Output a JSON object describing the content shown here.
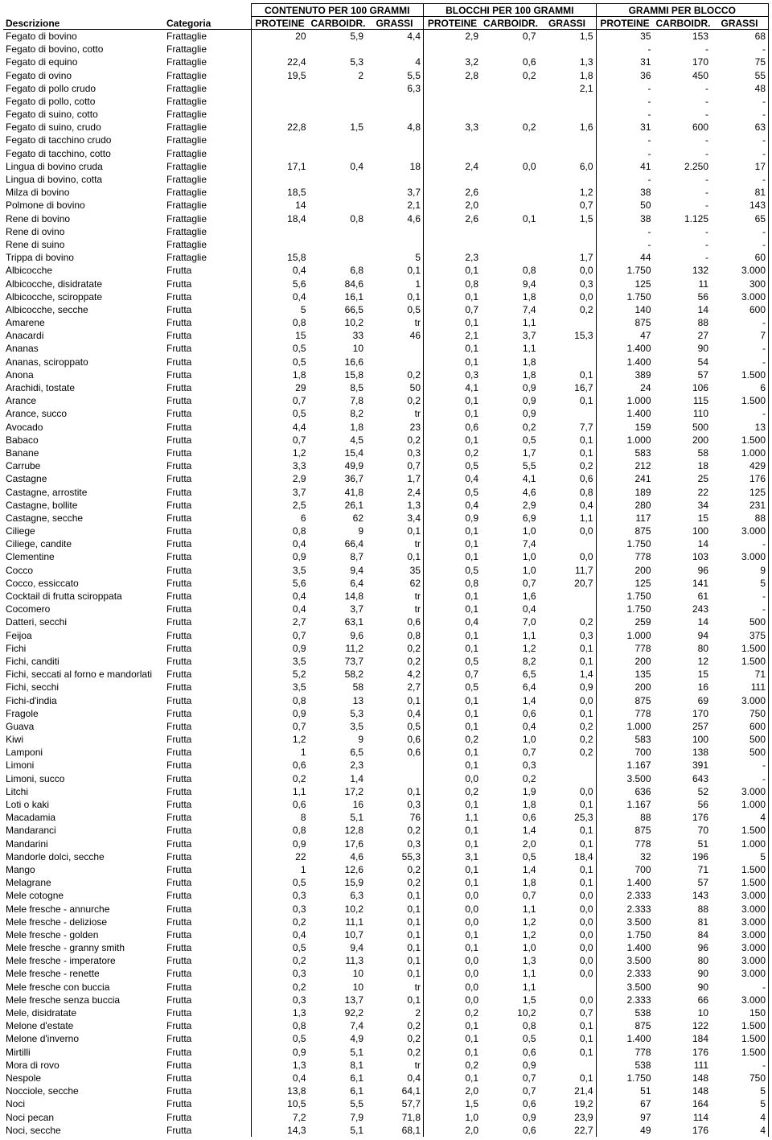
{
  "groupHeaders": [
    "CONTENUTO PER 100 GRAMMI",
    "BLOCCHI PER 100 GRAMMI",
    "GRAMMI PER BLOCCO"
  ],
  "columns": [
    "Descrizione",
    "Categoria",
    "PROTEINE",
    "CARBOIDR.",
    "GRASSI",
    "PROTEINE",
    "CARBOIDR.",
    "GRASSI",
    "PROTEINE",
    "CARBOIDR.",
    "GRASSI"
  ],
  "rows": [
    [
      "Fegato di bovino",
      "Frattaglie",
      "20",
      "5,9",
      "4,4",
      "2,9",
      "0,7",
      "1,5",
      "35",
      "153",
      "68"
    ],
    [
      "Fegato di bovino, cotto",
      "Frattaglie",
      "",
      "",
      "",
      "",
      "",
      "",
      "-",
      "-",
      "-"
    ],
    [
      "Fegato di equino",
      "Frattaglie",
      "22,4",
      "5,3",
      "4",
      "3,2",
      "0,6",
      "1,3",
      "31",
      "170",
      "75"
    ],
    [
      "Fegato di ovino",
      "Frattaglie",
      "19,5",
      "2",
      "5,5",
      "2,8",
      "0,2",
      "1,8",
      "36",
      "450",
      "55"
    ],
    [
      "Fegato di pollo crudo",
      "Frattaglie",
      "",
      "",
      "6,3",
      "",
      "",
      "2,1",
      "-",
      "-",
      "48"
    ],
    [
      "Fegato di pollo, cotto",
      "Frattaglie",
      "",
      "",
      "",
      "",
      "",
      "",
      "-",
      "-",
      "-"
    ],
    [
      "Fegato di suino, cotto",
      "Frattaglie",
      "",
      "",
      "",
      "",
      "",
      "",
      "-",
      "-",
      "-"
    ],
    [
      "Fegato di suino, crudo",
      "Frattaglie",
      "22,8",
      "1,5",
      "4,8",
      "3,3",
      "0,2",
      "1,6",
      "31",
      "600",
      "63"
    ],
    [
      "Fegato di tacchino crudo",
      "Frattaglie",
      "",
      "",
      "",
      "",
      "",
      "",
      "-",
      "-",
      "-"
    ],
    [
      "Fegato di tacchino, cotto",
      "Frattaglie",
      "",
      "",
      "",
      "",
      "",
      "",
      "-",
      "-",
      "-"
    ],
    [
      "Lingua di bovino cruda",
      "Frattaglie",
      "17,1",
      "0,4",
      "18",
      "2,4",
      "0,0",
      "6,0",
      "41",
      "2.250",
      "17"
    ],
    [
      "Lingua di bovino, cotta",
      "Frattaglie",
      "",
      "",
      "",
      "",
      "",
      "",
      "-",
      "-",
      "-"
    ],
    [
      "Milza di bovino",
      "Frattaglie",
      "18,5",
      "",
      "3,7",
      "2,6",
      "",
      "1,2",
      "38",
      "-",
      "81"
    ],
    [
      "Polmone di bovino",
      "Frattaglie",
      "14",
      "",
      "2,1",
      "2,0",
      "",
      "0,7",
      "50",
      "-",
      "143"
    ],
    [
      "Rene di bovino",
      "Frattaglie",
      "18,4",
      "0,8",
      "4,6",
      "2,6",
      "0,1",
      "1,5",
      "38",
      "1.125",
      "65"
    ],
    [
      "Rene di ovino",
      "Frattaglie",
      "",
      "",
      "",
      "",
      "",
      "",
      "-",
      "-",
      "-"
    ],
    [
      "Rene di suino",
      "Frattaglie",
      "",
      "",
      "",
      "",
      "",
      "",
      "-",
      "-",
      "-"
    ],
    [
      "Trippa di bovino",
      "Frattaglie",
      "15,8",
      "",
      "5",
      "2,3",
      "",
      "1,7",
      "44",
      "-",
      "60"
    ],
    [
      "Albicocche",
      "Frutta",
      "0,4",
      "6,8",
      "0,1",
      "0,1",
      "0,8",
      "0,0",
      "1.750",
      "132",
      "3.000"
    ],
    [
      "Albicocche, disidratate",
      "Frutta",
      "5,6",
      "84,6",
      "1",
      "0,8",
      "9,4",
      "0,3",
      "125",
      "11",
      "300"
    ],
    [
      "Albicocche, sciroppate",
      "Frutta",
      "0,4",
      "16,1",
      "0,1",
      "0,1",
      "1,8",
      "0,0",
      "1.750",
      "56",
      "3.000"
    ],
    [
      "Albicocche, secche",
      "Frutta",
      "5",
      "66,5",
      "0,5",
      "0,7",
      "7,4",
      "0,2",
      "140",
      "14",
      "600"
    ],
    [
      "Amarene",
      "Frutta",
      "0,8",
      "10,2",
      "tr",
      "0,1",
      "1,1",
      "",
      "875",
      "88",
      "-"
    ],
    [
      "Anacardi",
      "Frutta",
      "15",
      "33",
      "46",
      "2,1",
      "3,7",
      "15,3",
      "47",
      "27",
      "7"
    ],
    [
      "Ananas",
      "Frutta",
      "0,5",
      "10",
      "",
      "0,1",
      "1,1",
      "",
      "1.400",
      "90",
      "-"
    ],
    [
      "Ananas, sciroppato",
      "Frutta",
      "0,5",
      "16,6",
      "",
      "0,1",
      "1,8",
      "",
      "1.400",
      "54",
      "-"
    ],
    [
      "Anona",
      "Frutta",
      "1,8",
      "15,8",
      "0,2",
      "0,3",
      "1,8",
      "0,1",
      "389",
      "57",
      "1.500"
    ],
    [
      "Arachidi, tostate",
      "Frutta",
      "29",
      "8,5",
      "50",
      "4,1",
      "0,9",
      "16,7",
      "24",
      "106",
      "6"
    ],
    [
      "Arance",
      "Frutta",
      "0,7",
      "7,8",
      "0,2",
      "0,1",
      "0,9",
      "0,1",
      "1.000",
      "115",
      "1.500"
    ],
    [
      "Arance, succo",
      "Frutta",
      "0,5",
      "8,2",
      "tr",
      "0,1",
      "0,9",
      "",
      "1.400",
      "110",
      "-"
    ],
    [
      "Avocado",
      "Frutta",
      "4,4",
      "1,8",
      "23",
      "0,6",
      "0,2",
      "7,7",
      "159",
      "500",
      "13"
    ],
    [
      "Babaco",
      "Frutta",
      "0,7",
      "4,5",
      "0,2",
      "0,1",
      "0,5",
      "0,1",
      "1.000",
      "200",
      "1.500"
    ],
    [
      "Banane",
      "Frutta",
      "1,2",
      "15,4",
      "0,3",
      "0,2",
      "1,7",
      "0,1",
      "583",
      "58",
      "1.000"
    ],
    [
      "Carrube",
      "Frutta",
      "3,3",
      "49,9",
      "0,7",
      "0,5",
      "5,5",
      "0,2",
      "212",
      "18",
      "429"
    ],
    [
      "Castagne",
      "Frutta",
      "2,9",
      "36,7",
      "1,7",
      "0,4",
      "4,1",
      "0,6",
      "241",
      "25",
      "176"
    ],
    [
      "Castagne, arrostite",
      "Frutta",
      "3,7",
      "41,8",
      "2,4",
      "0,5",
      "4,6",
      "0,8",
      "189",
      "22",
      "125"
    ],
    [
      "Castagne, bollite",
      "Frutta",
      "2,5",
      "26,1",
      "1,3",
      "0,4",
      "2,9",
      "0,4",
      "280",
      "34",
      "231"
    ],
    [
      "Castagne, secche",
      "Frutta",
      "6",
      "62",
      "3,4",
      "0,9",
      "6,9",
      "1,1",
      "117",
      "15",
      "88"
    ],
    [
      "Ciliege",
      "Frutta",
      "0,8",
      "9",
      "0,1",
      "0,1",
      "1,0",
      "0,0",
      "875",
      "100",
      "3.000"
    ],
    [
      "Ciliege, candite",
      "Frutta",
      "0,4",
      "66,4",
      "tr",
      "0,1",
      "7,4",
      "",
      "1.750",
      "14",
      "-"
    ],
    [
      "Clementine",
      "Frutta",
      "0,9",
      "8,7",
      "0,1",
      "0,1",
      "1,0",
      "0,0",
      "778",
      "103",
      "3.000"
    ],
    [
      "Cocco",
      "Frutta",
      "3,5",
      "9,4",
      "35",
      "0,5",
      "1,0",
      "11,7",
      "200",
      "96",
      "9"
    ],
    [
      "Cocco, essiccato",
      "Frutta",
      "5,6",
      "6,4",
      "62",
      "0,8",
      "0,7",
      "20,7",
      "125",
      "141",
      "5"
    ],
    [
      "Cocktail di frutta sciroppata",
      "Frutta",
      "0,4",
      "14,8",
      "tr",
      "0,1",
      "1,6",
      "",
      "1.750",
      "61",
      "-"
    ],
    [
      "Cocomero",
      "Frutta",
      "0,4",
      "3,7",
      "tr",
      "0,1",
      "0,4",
      "",
      "1.750",
      "243",
      "-"
    ],
    [
      "Datteri, secchi",
      "Frutta",
      "2,7",
      "63,1",
      "0,6",
      "0,4",
      "7,0",
      "0,2",
      "259",
      "14",
      "500"
    ],
    [
      "Feijoa",
      "Frutta",
      "0,7",
      "9,6",
      "0,8",
      "0,1",
      "1,1",
      "0,3",
      "1.000",
      "94",
      "375"
    ],
    [
      "Fichi",
      "Frutta",
      "0,9",
      "11,2",
      "0,2",
      "0,1",
      "1,2",
      "0,1",
      "778",
      "80",
      "1.500"
    ],
    [
      "Fichi, canditi",
      "Frutta",
      "3,5",
      "73,7",
      "0,2",
      "0,5",
      "8,2",
      "0,1",
      "200",
      "12",
      "1.500"
    ],
    [
      "Fichi, seccati al forno e mandorlati",
      "Frutta",
      "5,2",
      "58,2",
      "4,2",
      "0,7",
      "6,5",
      "1,4",
      "135",
      "15",
      "71"
    ],
    [
      "Fichi, secchi",
      "Frutta",
      "3,5",
      "58",
      "2,7",
      "0,5",
      "6,4",
      "0,9",
      "200",
      "16",
      "111"
    ],
    [
      "Fichi-d'india",
      "Frutta",
      "0,8",
      "13",
      "0,1",
      "0,1",
      "1,4",
      "0,0",
      "875",
      "69",
      "3.000"
    ],
    [
      "Fragole",
      "Frutta",
      "0,9",
      "5,3",
      "0,4",
      "0,1",
      "0,6",
      "0,1",
      "778",
      "170",
      "750"
    ],
    [
      "Guava",
      "Frutta",
      "0,7",
      "3,5",
      "0,5",
      "0,1",
      "0,4",
      "0,2",
      "1.000",
      "257",
      "600"
    ],
    [
      "Kiwi",
      "Frutta",
      "1,2",
      "9",
      "0,6",
      "0,2",
      "1,0",
      "0,2",
      "583",
      "100",
      "500"
    ],
    [
      "Lamponi",
      "Frutta",
      "1",
      "6,5",
      "0,6",
      "0,1",
      "0,7",
      "0,2",
      "700",
      "138",
      "500"
    ],
    [
      "Limoni",
      "Frutta",
      "0,6",
      "2,3",
      "",
      "0,1",
      "0,3",
      "",
      "1.167",
      "391",
      "-"
    ],
    [
      "Limoni, succo",
      "Frutta",
      "0,2",
      "1,4",
      "",
      "0,0",
      "0,2",
      "",
      "3.500",
      "643",
      "-"
    ],
    [
      "Litchi",
      "Frutta",
      "1,1",
      "17,2",
      "0,1",
      "0,2",
      "1,9",
      "0,0",
      "636",
      "52",
      "3.000"
    ],
    [
      "Loti o kaki",
      "Frutta",
      "0,6",
      "16",
      "0,3",
      "0,1",
      "1,8",
      "0,1",
      "1.167",
      "56",
      "1.000"
    ],
    [
      "Macadamia",
      "Frutta",
      "8",
      "5,1",
      "76",
      "1,1",
      "0,6",
      "25,3",
      "88",
      "176",
      "4"
    ],
    [
      "Mandaranci",
      "Frutta",
      "0,8",
      "12,8",
      "0,2",
      "0,1",
      "1,4",
      "0,1",
      "875",
      "70",
      "1.500"
    ],
    [
      "Mandarini",
      "Frutta",
      "0,9",
      "17,6",
      "0,3",
      "0,1",
      "2,0",
      "0,1",
      "778",
      "51",
      "1.000"
    ],
    [
      "Mandorle dolci, secche",
      "Frutta",
      "22",
      "4,6",
      "55,3",
      "3,1",
      "0,5",
      "18,4",
      "32",
      "196",
      "5"
    ],
    [
      "Mango",
      "Frutta",
      "1",
      "12,6",
      "0,2",
      "0,1",
      "1,4",
      "0,1",
      "700",
      "71",
      "1.500"
    ],
    [
      "Melagrane",
      "Frutta",
      "0,5",
      "15,9",
      "0,2",
      "0,1",
      "1,8",
      "0,1",
      "1.400",
      "57",
      "1.500"
    ],
    [
      "Mele cotogne",
      "Frutta",
      "0,3",
      "6,3",
      "0,1",
      "0,0",
      "0,7",
      "0,0",
      "2.333",
      "143",
      "3.000"
    ],
    [
      "Mele fresche - annurche",
      "Frutta",
      "0,3",
      "10,2",
      "0,1",
      "0,0",
      "1,1",
      "0,0",
      "2.333",
      "88",
      "3.000"
    ],
    [
      "Mele fresche - deliziose",
      "Frutta",
      "0,2",
      "11,1",
      "0,1",
      "0,0",
      "1,2",
      "0,0",
      "3.500",
      "81",
      "3.000"
    ],
    [
      "Mele fresche - golden",
      "Frutta",
      "0,4",
      "10,7",
      "0,1",
      "0,1",
      "1,2",
      "0,0",
      "1.750",
      "84",
      "3.000"
    ],
    [
      "Mele fresche - granny smith",
      "Frutta",
      "0,5",
      "9,4",
      "0,1",
      "0,1",
      "1,0",
      "0,0",
      "1.400",
      "96",
      "3.000"
    ],
    [
      "Mele fresche - imperatore",
      "Frutta",
      "0,2",
      "11,3",
      "0,1",
      "0,0",
      "1,3",
      "0,0",
      "3.500",
      "80",
      "3.000"
    ],
    [
      "Mele fresche - renette",
      "Frutta",
      "0,3",
      "10",
      "0,1",
      "0,0",
      "1,1",
      "0,0",
      "2.333",
      "90",
      "3.000"
    ],
    [
      "Mele fresche con buccia",
      "Frutta",
      "0,2",
      "10",
      "tr",
      "0,0",
      "1,1",
      "",
      "3.500",
      "90",
      "-"
    ],
    [
      "Mele fresche senza buccia",
      "Frutta",
      "0,3",
      "13,7",
      "0,1",
      "0,0",
      "1,5",
      "0,0",
      "2.333",
      "66",
      "3.000"
    ],
    [
      "Mele, disidratate",
      "Frutta",
      "1,3",
      "92,2",
      "2",
      "0,2",
      "10,2",
      "0,7",
      "538",
      "10",
      "150"
    ],
    [
      "Melone d'estate",
      "Frutta",
      "0,8",
      "7,4",
      "0,2",
      "0,1",
      "0,8",
      "0,1",
      "875",
      "122",
      "1.500"
    ],
    [
      "Melone d'inverno",
      "Frutta",
      "0,5",
      "4,9",
      "0,2",
      "0,1",
      "0,5",
      "0,1",
      "1.400",
      "184",
      "1.500"
    ],
    [
      "Mirtilli",
      "Frutta",
      "0,9",
      "5,1",
      "0,2",
      "0,1",
      "0,6",
      "0,1",
      "778",
      "176",
      "1.500"
    ],
    [
      "Mora di rovo",
      "Frutta",
      "1,3",
      "8,1",
      "tr",
      "0,2",
      "0,9",
      "",
      "538",
      "111",
      "-"
    ],
    [
      "Nespole",
      "Frutta",
      "0,4",
      "6,1",
      "0,4",
      "0,1",
      "0,7",
      "0,1",
      "1.750",
      "148",
      "750"
    ],
    [
      "Nocciole, secche",
      "Frutta",
      "13,8",
      "6,1",
      "64,1",
      "2,0",
      "0,7",
      "21,4",
      "51",
      "148",
      "5"
    ],
    [
      "Noci",
      "Frutta",
      "10,5",
      "5,5",
      "57,7",
      "1,5",
      "0,6",
      "19,2",
      "67",
      "164",
      "5"
    ],
    [
      "Noci pecan",
      "Frutta",
      "7,2",
      "7,9",
      "71,8",
      "1,0",
      "0,9",
      "23,9",
      "97",
      "114",
      "4"
    ],
    [
      "Noci, secche",
      "Frutta",
      "14,3",
      "5,1",
      "68,1",
      "2,0",
      "0,6",
      "22,7",
      "49",
      "176",
      "4"
    ]
  ]
}
